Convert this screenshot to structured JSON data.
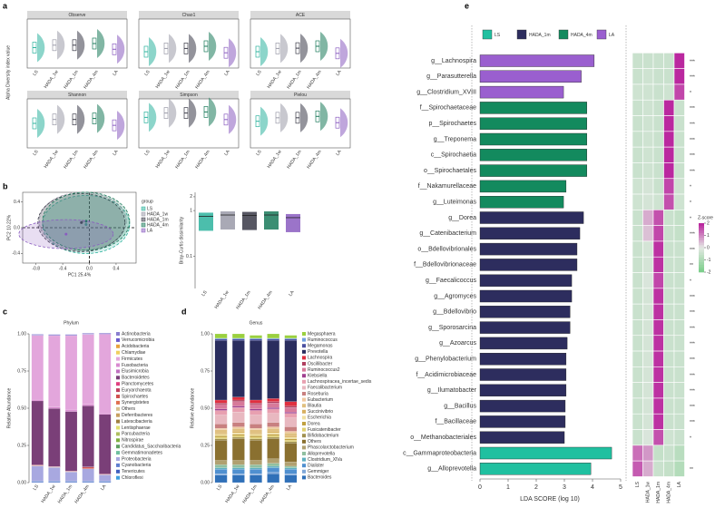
{
  "panel_labels": [
    "a",
    "b",
    "c",
    "d",
    "e"
  ],
  "alpha": {
    "type": "violin",
    "ylabel": "Alpha Diversity index value",
    "categories": [
      "LS",
      "HADA_1w",
      "HADA_1m",
      "HADA_4m",
      "LA"
    ],
    "colors": [
      "#2db39e",
      "#9a9aa8",
      "#3a3a48",
      "#1a7a5a",
      "#8a5cc0"
    ],
    "panels": [
      {
        "title": "Observe",
        "ylim": [
          100,
          700
        ],
        "values": [
          350,
          380,
          380,
          400,
          330
        ]
      },
      {
        "title": "Chao1",
        "ylim": [
          200,
          1100
        ],
        "values": [
          500,
          560,
          560,
          600,
          480
        ]
      },
      {
        "title": "ACE",
        "ylim": [
          200,
          1100
        ],
        "values": [
          500,
          560,
          565,
          600,
          470
        ]
      },
      {
        "title": "Shannon",
        "ylim": [
          1,
          6
        ],
        "values": [
          3.5,
          3.9,
          3.9,
          4.0,
          3.3
        ]
      },
      {
        "title": "Simpson",
        "ylim": [
          0.6,
          1.05
        ],
        "values": [
          0.88,
          0.92,
          0.92,
          0.93,
          0.86
        ]
      },
      {
        "title": "Pielou",
        "ylim": [
          0.2,
          0.9
        ],
        "values": [
          0.58,
          0.63,
          0.63,
          0.65,
          0.56
        ]
      }
    ]
  },
  "pcoa": {
    "type": "scatter",
    "xlabel": "PC1 25.4%",
    "ylabel": "PC2 10.22%",
    "legend_title": "group",
    "xlim": [
      -1.0,
      0.7
    ],
    "ylim": [
      -0.55,
      0.55
    ],
    "xticks": [
      -0.8,
      -0.4,
      {
        "value": 0,
        "label": "0.0"
      },
      0.4
    ],
    "yticks": [
      -0.4,
      {
        "value": 0,
        "label": "0.0"
      },
      0.4
    ],
    "series": [
      {
        "name": "LS",
        "color": "#2db39e",
        "x": -0.05,
        "y": 0.05
      },
      {
        "name": "HADA_1w",
        "color": "#9a9aa8",
        "x": -0.1,
        "y": 0.1
      },
      {
        "name": "HADA_1m",
        "color": "#3a3a48",
        "x": -0.12,
        "y": 0.08
      },
      {
        "name": "HADA_4m",
        "color": "#1a7a5a",
        "x": -0.05,
        "y": 0.1
      },
      {
        "name": "LA",
        "color": "#8a5cc0",
        "x": -0.35,
        "y": -0.1
      }
    ]
  },
  "bray": {
    "type": "box",
    "ylabel": "Bray-Curtis dissimilarity",
    "log": true,
    "ylim": [
      0.02,
      2.5
    ],
    "yticks": [
      0.1,
      1,
      2
    ],
    "categories": [
      "LS",
      "HADA_1w",
      "HADA_1m",
      "HADA_4m",
      "LA"
    ],
    "colors": [
      "#2db39e",
      "#9a9aa8",
      "#3a3a48",
      "#1a7a5a",
      "#8a5cc0"
    ],
    "values": [
      0.75,
      0.8,
      0.78,
      0.8,
      0.7
    ]
  },
  "phylum": {
    "type": "stacked_bar",
    "title": "Phylum",
    "ylabel": "Relative Abundance",
    "categories": [
      "LS",
      "HADA_1w",
      "HADA_1m",
      "HADA_4m",
      "LA"
    ],
    "ylim": [
      0,
      1
    ],
    "yticks": [
      {
        "value": 0,
        "label": "0.00"
      },
      0.25,
      {
        "value": 0.5,
        "label": "0.50"
      },
      0.75,
      {
        "value": 1,
        "label": "1.00"
      }
    ],
    "series": [
      {
        "name": "Actinobacteria",
        "color": "#8a7fd0",
        "values": [
          0.005,
          0.005,
          0.005,
          0.005,
          0.005
        ]
      },
      {
        "name": "Verrucomicrobia",
        "color": "#6a5acd",
        "values": [
          0.003,
          0.003,
          0.003,
          0.003,
          0.003
        ]
      },
      {
        "name": "Acidobacteria",
        "color": "#e8a33d",
        "values": [
          0,
          0,
          0,
          0,
          0
        ]
      },
      {
        "name": "Chlamydiae",
        "color": "#f0d060",
        "values": [
          0,
          0,
          0,
          0,
          0
        ]
      },
      {
        "name": "Firmicutes",
        "color": "#e3a6dc",
        "values": [
          0.43,
          0.48,
          0.5,
          0.47,
          0.53
        ]
      },
      {
        "name": "Fusobacteria",
        "color": "#d98ad0",
        "values": [
          0.01,
          0.01,
          0.01,
          0.01,
          0.01
        ]
      },
      {
        "name": "Elusimicrobia",
        "color": "#c070c0",
        "values": [
          0,
          0,
          0,
          0,
          0
        ]
      },
      {
        "name": "Bacteroidetes",
        "color": "#7a3f78",
        "values": [
          0.43,
          0.39,
          0.4,
          0.41,
          0.4
        ]
      },
      {
        "name": "Planctomycetes",
        "color": "#e04080",
        "values": [
          0,
          0,
          0,
          0,
          0
        ]
      },
      {
        "name": "Euryarchaeota",
        "color": "#c04060",
        "values": [
          0.002,
          0.002,
          0.002,
          0.002,
          0.002
        ]
      },
      {
        "name": "Spirochaetes",
        "color": "#d05050",
        "values": [
          0.003,
          0.002,
          0.002,
          0.01,
          0.002
        ]
      },
      {
        "name": "Synergistetes",
        "color": "#e07050",
        "values": [
          0,
          0,
          0,
          0,
          0
        ]
      },
      {
        "name": "Others",
        "color": "#d8c090",
        "values": [
          0.002,
          0.002,
          0.002,
          0.002,
          0.002
        ]
      },
      {
        "name": "Deferribacteres",
        "color": "#c8a060",
        "values": [
          0,
          0,
          0,
          0,
          0
        ]
      },
      {
        "name": "Latescibacteria",
        "color": "#a08040",
        "values": [
          0,
          0,
          0,
          0,
          0
        ]
      },
      {
        "name": "Lentisphaerae",
        "color": "#e0e070",
        "values": [
          0,
          0,
          0,
          0,
          0
        ]
      },
      {
        "name": "Parcubacteria",
        "color": "#b0c060",
        "values": [
          0,
          0,
          0,
          0,
          0
        ]
      },
      {
        "name": "Nitrospirae",
        "color": "#80b040",
        "values": [
          0,
          0,
          0,
          0,
          0
        ]
      },
      {
        "name": "Candidatus_Saccharibacteria",
        "color": "#60a060",
        "values": [
          0,
          0,
          0,
          0,
          0
        ]
      },
      {
        "name": "Gemmatimonadetes",
        "color": "#70c0a0",
        "values": [
          0,
          0,
          0,
          0,
          0
        ]
      },
      {
        "name": "Proteobacteria",
        "color": "#a8a8e0",
        "values": [
          0.1,
          0.09,
          0.06,
          0.08,
          0.04
        ]
      },
      {
        "name": "Cyanobacteria",
        "color": "#6080d0",
        "values": [
          0.005,
          0.005,
          0.005,
          0.005,
          0.005
        ]
      },
      {
        "name": "Tenericutes",
        "color": "#4060c0",
        "values": [
          0.005,
          0.005,
          0.005,
          0.005,
          0.005
        ]
      },
      {
        "name": "Chloroflexi",
        "color": "#40a0e0",
        "values": [
          0.002,
          0.002,
          0.002,
          0.002,
          0.002
        ]
      }
    ]
  },
  "genus": {
    "type": "stacked_bar",
    "title": "Genus",
    "ylabel": "Relative Abundance",
    "categories": [
      "LS",
      "HADA_1w",
      "HADA_1m",
      "HADA_4m",
      "LA"
    ],
    "ylim": [
      0,
      1
    ],
    "yticks": [
      {
        "value": 0,
        "label": "0.00"
      },
      0.25,
      {
        "value": 0.5,
        "label": "0.50"
      },
      0.75,
      {
        "value": 1,
        "label": "1.00"
      }
    ],
    "series": [
      {
        "name": "Megasphaera",
        "color": "#9ad040",
        "values": [
          0.03,
          0.03,
          0.02,
          0.03,
          0.02
        ]
      },
      {
        "name": "Ruminococcus",
        "color": "#70a0e0",
        "values": [
          0.005,
          0.005,
          0.005,
          0.005,
          0.005
        ]
      },
      {
        "name": "Megamonas",
        "color": "#4a50a0",
        "values": [
          0.01,
          0.01,
          0.01,
          0.01,
          0.01
        ]
      },
      {
        "name": "Prevotella",
        "color": "#2a2d5e",
        "values": [
          0.4,
          0.38,
          0.4,
          0.39,
          0.41
        ]
      },
      {
        "name": "Lachnospira",
        "color": "#e03040",
        "values": [
          0.02,
          0.02,
          0.02,
          0.02,
          0.03
        ]
      },
      {
        "name": "Oscillibacter",
        "color": "#b04060",
        "values": [
          0.01,
          0.01,
          0.01,
          0.01,
          0.01
        ]
      },
      {
        "name": "Ruminococcus2",
        "color": "#d77a9a",
        "values": [
          0.03,
          0.03,
          0.03,
          0.03,
          0.03
        ]
      },
      {
        "name": "Klebsiella",
        "color": "#a04090",
        "values": [
          0.01,
          0.01,
          0.01,
          0.01,
          0.01
        ]
      },
      {
        "name": "Lachnospiracea_incertae_sedis",
        "color": "#e8a0b0",
        "values": [
          0.03,
          0.03,
          0.03,
          0.03,
          0.03
        ]
      },
      {
        "name": "Faecalibacterium",
        "color": "#e8b8c0",
        "values": [
          0.06,
          0.07,
          0.06,
          0.06,
          0.06
        ]
      },
      {
        "name": "Roseburia",
        "color": "#c88080",
        "values": [
          0.03,
          0.03,
          0.03,
          0.03,
          0.03
        ]
      },
      {
        "name": "Eubacterium",
        "color": "#f0c8a0",
        "values": [
          0.01,
          0.01,
          0.01,
          0.01,
          0.01
        ]
      },
      {
        "name": "Blautia",
        "color": "#e0c080",
        "values": [
          0.02,
          0.02,
          0.02,
          0.02,
          0.02
        ]
      },
      {
        "name": "Succinivibrio",
        "color": "#d8b060",
        "values": [
          0.01,
          0.01,
          0.01,
          0.01,
          0.01
        ]
      },
      {
        "name": "Escherichia",
        "color": "#f0e0a0",
        "values": [
          0.01,
          0.01,
          0.01,
          0.01,
          0.01
        ]
      },
      {
        "name": "Dorea",
        "color": "#c0a040",
        "values": [
          0.01,
          0.01,
          0.01,
          0.01,
          0.01
        ]
      },
      {
        "name": "Fusicatenibacter",
        "color": "#e0d070",
        "values": [
          0.01,
          0.01,
          0.01,
          0.01,
          0.01
        ]
      },
      {
        "name": "Bifidobacterium",
        "color": "#a09050",
        "values": [
          0.01,
          0.01,
          0.01,
          0.01,
          0.01
        ]
      },
      {
        "name": "Others",
        "color": "#8a7030",
        "values": [
          0.135,
          0.145,
          0.135,
          0.135,
          0.125
        ]
      },
      {
        "name": "Phascolarctobacterium",
        "color": "#b0a070",
        "values": [
          0.03,
          0.03,
          0.03,
          0.03,
          0.03
        ]
      },
      {
        "name": "Alloprevotella",
        "color": "#90c0a0",
        "values": [
          0.02,
          0.02,
          0.02,
          0.02,
          0.01
        ]
      },
      {
        "name": "Clostridium_XlVa",
        "color": "#60b0c0",
        "values": [
          0.01,
          0.01,
          0.01,
          0.01,
          0.01
        ]
      },
      {
        "name": "Dialister",
        "color": "#5090d0",
        "values": [
          0.03,
          0.03,
          0.03,
          0.03,
          0.03
        ]
      },
      {
        "name": "Gemmiger",
        "color": "#80a8d8",
        "values": [
          0.01,
          0.01,
          0.01,
          0.01,
          0.01
        ]
      },
      {
        "name": "Bacteroides",
        "color": "#3070b8",
        "values": [
          0.05,
          0.05,
          0.05,
          0.06,
          0.05
        ]
      }
    ]
  },
  "lda": {
    "type": "barh",
    "xlabel": "LDA SCORE (log 10)",
    "xlim": [
      0,
      5
    ],
    "xticks": [
      0,
      1,
      2,
      3,
      4,
      5
    ],
    "legend": [
      {
        "name": "LS",
        "color": "#20c0a0"
      },
      {
        "name": "HADA_1m",
        "color": "#2d2d5e"
      },
      {
        "name": "HADA_4m",
        "color": "#138a5e"
      },
      {
        "name": "LA",
        "color": "#9a5fcf"
      }
    ],
    "categories": [
      "g__Lachnospira",
      "g__Parasutterella",
      "g__Clostridium_XVIII",
      "f__Spirochaetaceae",
      "p__Spirochaetes",
      "g__Treponema",
      "c__Spirochaetia",
      "o__Spirochaetales",
      "f__Nakamurellaceae",
      "g__Luteimonas",
      "g__Dorea",
      "g__Catenibacterium",
      "o__Bdellovibrionales",
      "f__Bdellovibrionaceae",
      "g__Faecalicoccus",
      "g__Agromyces",
      "g__Bdellovibrio",
      "g__Sporosarcina",
      "g__Azoarcus",
      "g__Phenylobacterium",
      "f__Acidimicrobiaceae",
      "g__Ilumatobacter",
      "g__Bacillus",
      "f__Bacillaceae",
      "o__Methanobacteriales",
      "c__Gammaproteobacteria",
      "g__Alloprevotella"
    ],
    "values": [
      4.06,
      3.6,
      2.97,
      3.8,
      3.8,
      3.8,
      3.8,
      3.8,
      3.06,
      2.97,
      3.68,
      3.55,
      3.45,
      3.45,
      3.26,
      3.26,
      3.2,
      3.2,
      3.1,
      3.06,
      3.06,
      3.06,
      3.03,
      3.03,
      3.0,
      4.68,
      3.94
    ],
    "colors": [
      "#9a5fcf",
      "#9a5fcf",
      "#9a5fcf",
      "#138a5e",
      "#138a5e",
      "#138a5e",
      "#138a5e",
      "#138a5e",
      "#138a5e",
      "#138a5e",
      "#2d2d5e",
      "#2d2d5e",
      "#2d2d5e",
      "#2d2d5e",
      "#2d2d5e",
      "#2d2d5e",
      "#2d2d5e",
      "#2d2d5e",
      "#2d2d5e",
      "#2d2d5e",
      "#2d2d5e",
      "#2d2d5e",
      "#2d2d5e",
      "#2d2d5e",
      "#2d2d5e",
      "#20c0a0",
      "#20c0a0"
    ]
  },
  "heatmap": {
    "type": "heatmap",
    "columns": [
      "LS",
      "HADA_1w",
      "HADA_1m",
      "HADA_4m",
      "LA"
    ],
    "colorbar_title": "Z-score",
    "zlim": [
      -2,
      2
    ],
    "zticks": [
      2,
      1,
      0,
      -1,
      -2
    ],
    "z": [
      [
        -0.5,
        -0.5,
        -0.5,
        -0.5,
        1.9
      ],
      [
        -0.5,
        -0.4,
        -0.5,
        -0.5,
        1.9
      ],
      [
        -0.4,
        -0.4,
        -0.5,
        -0.4,
        1.6
      ],
      [
        -0.5,
        -0.4,
        -0.5,
        1.9,
        -0.5
      ],
      [
        -0.5,
        -0.4,
        -0.5,
        1.9,
        -0.5
      ],
      [
        -0.5,
        -0.4,
        -0.5,
        1.9,
        -0.5
      ],
      [
        -0.5,
        -0.4,
        -0.5,
        1.9,
        -0.5
      ],
      [
        -0.5,
        -0.4,
        -0.5,
        1.9,
        -0.5
      ],
      [
        -0.4,
        -0.3,
        -0.5,
        1.6,
        -0.4
      ],
      [
        -0.4,
        -0.3,
        -0.4,
        1.5,
        -0.4
      ],
      [
        -0.5,
        0.6,
        1.5,
        -0.5,
        -0.6
      ],
      [
        -0.5,
        0.4,
        1.6,
        -0.5,
        -0.6
      ],
      [
        -0.5,
        -0.3,
        1.8,
        -0.5,
        -0.5
      ],
      [
        -0.5,
        -0.3,
        1.8,
        -0.5,
        -0.5
      ],
      [
        -0.5,
        -0.2,
        1.6,
        -0.5,
        -0.5
      ],
      [
        -0.5,
        -0.3,
        1.8,
        -0.5,
        -0.5
      ],
      [
        -0.5,
        -0.3,
        1.8,
        -0.5,
        -0.5
      ],
      [
        -0.5,
        -0.3,
        1.8,
        -0.5,
        -0.5
      ],
      [
        -0.5,
        -0.3,
        1.8,
        -0.5,
        -0.5
      ],
      [
        -0.5,
        -0.3,
        1.8,
        -0.5,
        -0.5
      ],
      [
        -0.5,
        -0.3,
        1.8,
        -0.5,
        -0.5
      ],
      [
        -0.5,
        -0.3,
        1.8,
        -0.5,
        -0.5
      ],
      [
        -0.5,
        -0.3,
        1.8,
        -0.5,
        -0.5
      ],
      [
        -0.5,
        -0.3,
        1.8,
        -0.5,
        -0.5
      ],
      [
        -0.5,
        -0.2,
        1.5,
        -0.4,
        -0.5
      ],
      [
        1.2,
        0.8,
        -0.6,
        -0.5,
        -0.8
      ],
      [
        1.4,
        0.6,
        -0.5,
        -0.6,
        -0.9
      ]
    ],
    "significance": [
      "***",
      "***",
      "*",
      "***",
      "***",
      "***",
      "***",
      "***",
      "*",
      "*",
      "*",
      "***",
      "***",
      "**",
      "*",
      "***",
      "***",
      "***",
      "***",
      "***",
      "***",
      "***",
      "***",
      "***",
      "*",
      null,
      "**"
    ]
  }
}
